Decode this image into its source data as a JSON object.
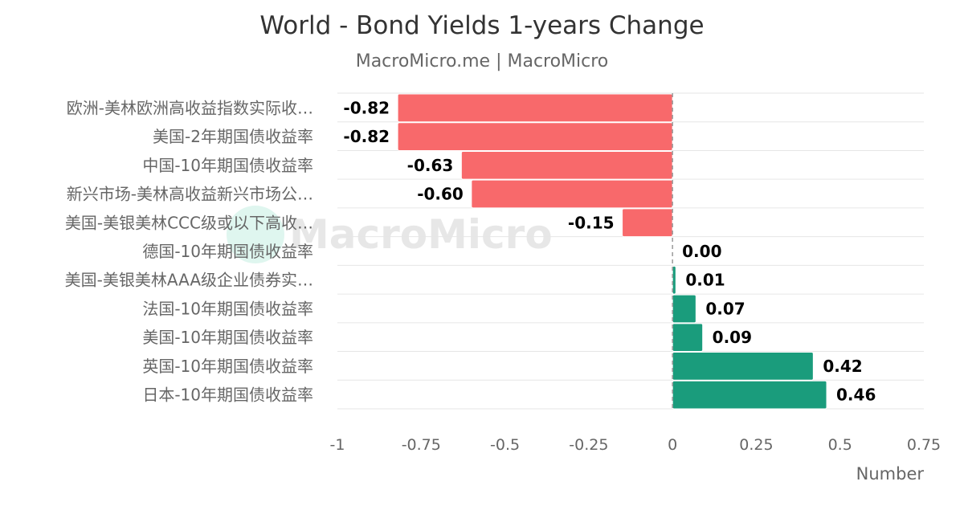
{
  "colors": {
    "negative": "#f8696b",
    "positive": "#1a9c7c",
    "grid": "#e6e6e6",
    "zero_line": "#999999"
  },
  "watermark": "MacroMicro",
  "chart_data": {
    "type": "bar",
    "orientation": "horizontal",
    "title": "World - Bond Yields 1-years Change",
    "subtitle": "MacroMicro.me | MacroMicro",
    "xlabel": "Number",
    "xlim": [
      -1,
      0.75
    ],
    "xticks": [
      -1,
      -0.75,
      -0.5,
      -0.25,
      0,
      0.25,
      0.5,
      0.75
    ],
    "xtick_labels": [
      "-1",
      "-0.75",
      "-0.5",
      "-0.25",
      "0",
      "0.25",
      "0.5",
      "0.75"
    ],
    "grid": true,
    "categories": [
      "欧洲-美林欧洲高收益指数实际收…",
      "美国-2年期国债收益率",
      "中国-10年期国债收益率",
      "新兴市场-美林高收益新兴市场公…",
      "美国-美银美林CCC级或以下高收…",
      "德国-10年期国债收益率",
      "美国-美银美林AAA级企业债券实…",
      "法国-10年期国债收益率",
      "美国-10年期国债收益率",
      "英国-10年期国债收益率",
      "日本-10年期国债收益率"
    ],
    "values": [
      -0.82,
      -0.82,
      -0.63,
      -0.6,
      -0.15,
      0.0,
      0.01,
      0.07,
      0.09,
      0.42,
      0.46
    ],
    "value_labels": [
      "-0.82",
      "-0.82",
      "-0.63",
      "-0.60",
      "-0.15",
      "0.00",
      "0.01",
      "0.07",
      "0.09",
      "0.42",
      "0.46"
    ]
  }
}
